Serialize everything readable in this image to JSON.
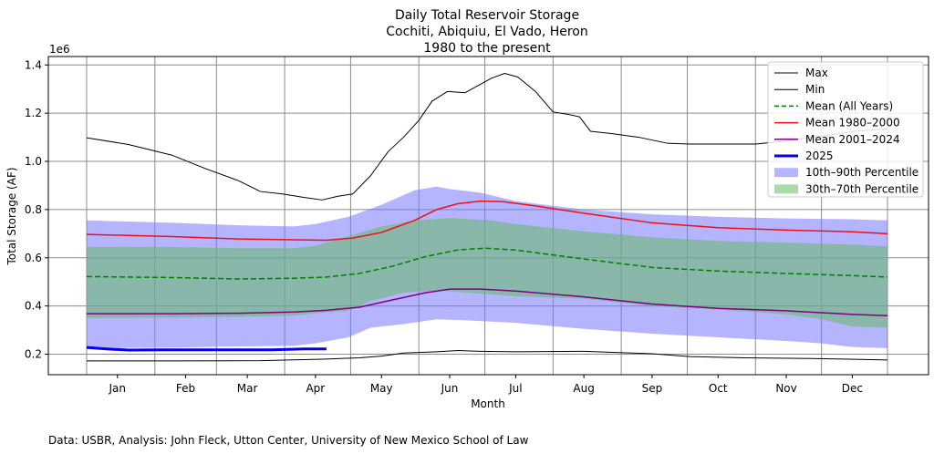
{
  "chart_data": {
    "type": "line",
    "title_lines": [
      "Daily Total Reservoir Storage",
      "Cochiti, Abiquiu, El Vado, Heron",
      "1980 to the present"
    ],
    "xlabel": "Month",
    "ylabel": "Total Storage (AF)",
    "y_multiplier_label": "1e6",
    "xlim": [
      1,
      365
    ],
    "ylim": [
      115000,
      1435000
    ],
    "x_is_day_of_year": true,
    "month_ticks": [
      {
        "label": "Jan",
        "day": 15
      },
      {
        "label": "Feb",
        "day": 46
      },
      {
        "label": "Mar",
        "day": 74
      },
      {
        "label": "Apr",
        "day": 105
      },
      {
        "label": "May",
        "day": 135
      },
      {
        "label": "Jun",
        "day": 166
      },
      {
        "label": "Jul",
        "day": 196
      },
      {
        "label": "Aug",
        "day": 227
      },
      {
        "label": "Sep",
        "day": 258
      },
      {
        "label": "Oct",
        "day": 288
      },
      {
        "label": "Nov",
        "day": 319
      },
      {
        "label": "Dec",
        "day": 349
      }
    ],
    "y_ticks": [
      {
        "label": "0.2",
        "value": 200000
      },
      {
        "label": "0.4",
        "value": 400000
      },
      {
        "label": "0.6",
        "value": 600000
      },
      {
        "label": "0.8",
        "value": 800000
      },
      {
        "label": "1.0",
        "value": 1000000
      },
      {
        "label": "1.2",
        "value": 1200000
      },
      {
        "label": "1.4",
        "value": 1400000
      }
    ],
    "grid": true,
    "legend_position": "upper-right",
    "bands": [
      {
        "name": "10th–90th Percentile",
        "color": "#7777ff",
        "opacity": 0.55,
        "upper": [
          [
            1,
            755000
          ],
          [
            40,
            745000
          ],
          [
            70,
            735000
          ],
          [
            95,
            730000
          ],
          [
            105,
            740000
          ],
          [
            120,
            770000
          ],
          [
            135,
            820000
          ],
          [
            150,
            880000
          ],
          [
            160,
            895000
          ],
          [
            166,
            885000
          ],
          [
            180,
            870000
          ],
          [
            196,
            835000
          ],
          [
            227,
            800000
          ],
          [
            258,
            780000
          ],
          [
            288,
            770000
          ],
          [
            319,
            763000
          ],
          [
            349,
            760000
          ],
          [
            365,
            755000
          ]
        ],
        "lower": [
          [
            1,
            225000
          ],
          [
            40,
            228000
          ],
          [
            70,
            232000
          ],
          [
            95,
            235000
          ],
          [
            105,
            245000
          ],
          [
            120,
            270000
          ],
          [
            130,
            310000
          ],
          [
            145,
            325000
          ],
          [
            160,
            345000
          ],
          [
            175,
            340000
          ],
          [
            196,
            330000
          ],
          [
            227,
            305000
          ],
          [
            258,
            285000
          ],
          [
            288,
            270000
          ],
          [
            319,
            255000
          ],
          [
            335,
            245000
          ],
          [
            349,
            230000
          ],
          [
            365,
            225000
          ]
        ]
      },
      {
        "name": "30th–70th Percentile",
        "color": "#66bb66",
        "opacity": 0.55,
        "upper": [
          [
            1,
            645000
          ],
          [
            40,
            645000
          ],
          [
            70,
            640000
          ],
          [
            95,
            640000
          ],
          [
            105,
            650000
          ],
          [
            120,
            690000
          ],
          [
            135,
            730000
          ],
          [
            150,
            755000
          ],
          [
            166,
            765000
          ],
          [
            185,
            755000
          ],
          [
            196,
            740000
          ],
          [
            227,
            710000
          ],
          [
            258,
            685000
          ],
          [
            288,
            670000
          ],
          [
            319,
            663000
          ],
          [
            349,
            655000
          ],
          [
            365,
            648000
          ]
        ],
        "lower": [
          [
            1,
            350000
          ],
          [
            40,
            352000
          ],
          [
            70,
            355000
          ],
          [
            95,
            360000
          ],
          [
            105,
            370000
          ],
          [
            120,
            380000
          ],
          [
            130,
            420000
          ],
          [
            145,
            455000
          ],
          [
            160,
            465000
          ],
          [
            175,
            455000
          ],
          [
            196,
            440000
          ],
          [
            227,
            430000
          ],
          [
            258,
            400000
          ],
          [
            288,
            385000
          ],
          [
            319,
            365000
          ],
          [
            335,
            345000
          ],
          [
            349,
            315000
          ],
          [
            365,
            310000
          ]
        ]
      }
    ],
    "series": [
      {
        "name": "Max",
        "color": "#000000",
        "style": "solid",
        "width": 1,
        "points": [
          [
            1,
            1098000
          ],
          [
            20,
            1070000
          ],
          [
            40,
            1025000
          ],
          [
            55,
            970000
          ],
          [
            70,
            920000
          ],
          [
            80,
            875000
          ],
          [
            90,
            865000
          ],
          [
            100,
            850000
          ],
          [
            108,
            840000
          ],
          [
            115,
            855000
          ],
          [
            122,
            865000
          ],
          [
            130,
            940000
          ],
          [
            138,
            1040000
          ],
          [
            145,
            1100000
          ],
          [
            152,
            1170000
          ],
          [
            158,
            1250000
          ],
          [
            165,
            1290000
          ],
          [
            173,
            1285000
          ],
          [
            178,
            1310000
          ],
          [
            185,
            1345000
          ],
          [
            191,
            1365000
          ],
          [
            197,
            1350000
          ],
          [
            205,
            1290000
          ],
          [
            213,
            1205000
          ],
          [
            220,
            1195000
          ],
          [
            225,
            1185000
          ],
          [
            230,
            1125000
          ],
          [
            240,
            1115000
          ],
          [
            252,
            1100000
          ],
          [
            265,
            1075000
          ],
          [
            275,
            1072000
          ],
          [
            290,
            1072000
          ],
          [
            305,
            1072000
          ],
          [
            320,
            1085000
          ],
          [
            330,
            1100000
          ],
          [
            340,
            1110000
          ],
          [
            350,
            1125000
          ],
          [
            365,
            1135000
          ]
        ]
      },
      {
        "name": "Min",
        "color": "#000000",
        "style": "solid",
        "width": 1,
        "points": [
          [
            1,
            172000
          ],
          [
            40,
            172000
          ],
          [
            80,
            173000
          ],
          [
            110,
            180000
          ],
          [
            125,
            185000
          ],
          [
            135,
            192000
          ],
          [
            145,
            205000
          ],
          [
            160,
            210000
          ],
          [
            170,
            215000
          ],
          [
            180,
            212000
          ],
          [
            196,
            210000
          ],
          [
            227,
            212000
          ],
          [
            258,
            202000
          ],
          [
            275,
            190000
          ],
          [
            300,
            185000
          ],
          [
            330,
            182000
          ],
          [
            345,
            180000
          ],
          [
            365,
            176000
          ]
        ]
      },
      {
        "name": "Mean (All Years)",
        "color": "#008000",
        "style": "dashed",
        "width": 1.5,
        "points": [
          [
            1,
            522000
          ],
          [
            40,
            518000
          ],
          [
            70,
            512000
          ],
          [
            95,
            515000
          ],
          [
            110,
            520000
          ],
          [
            125,
            535000
          ],
          [
            140,
            565000
          ],
          [
            155,
            605000
          ],
          [
            170,
            633000
          ],
          [
            182,
            640000
          ],
          [
            196,
            632000
          ],
          [
            227,
            595000
          ],
          [
            258,
            560000
          ],
          [
            288,
            545000
          ],
          [
            319,
            535000
          ],
          [
            349,
            526000
          ],
          [
            365,
            520000
          ]
        ]
      },
      {
        "name": "Mean 1980–2000",
        "color": "#ee1111",
        "style": "solid",
        "width": 1.5,
        "points": [
          [
            1,
            697000
          ],
          [
            40,
            688000
          ],
          [
            70,
            678000
          ],
          [
            95,
            675000
          ],
          [
            110,
            673000
          ],
          [
            122,
            682000
          ],
          [
            135,
            705000
          ],
          [
            150,
            755000
          ],
          [
            160,
            800000
          ],
          [
            170,
            825000
          ],
          [
            180,
            835000
          ],
          [
            190,
            833000
          ],
          [
            205,
            815000
          ],
          [
            227,
            785000
          ],
          [
            258,
            745000
          ],
          [
            288,
            725000
          ],
          [
            319,
            715000
          ],
          [
            349,
            708000
          ],
          [
            365,
            700000
          ]
        ]
      },
      {
        "name": "Mean 2001–2024",
        "color": "#800080",
        "style": "solid",
        "width": 1.5,
        "points": [
          [
            1,
            368000
          ],
          [
            40,
            368000
          ],
          [
            70,
            370000
          ],
          [
            95,
            375000
          ],
          [
            110,
            382000
          ],
          [
            125,
            395000
          ],
          [
            140,
            425000
          ],
          [
            155,
            455000
          ],
          [
            166,
            470000
          ],
          [
            180,
            470000
          ],
          [
            196,
            462000
          ],
          [
            227,
            438000
          ],
          [
            258,
            408000
          ],
          [
            288,
            390000
          ],
          [
            319,
            380000
          ],
          [
            349,
            365000
          ],
          [
            365,
            360000
          ]
        ]
      },
      {
        "name": "2025",
        "color": "#0000ee",
        "style": "solid",
        "width": 3,
        "points": [
          [
            1,
            228000
          ],
          [
            10,
            222000
          ],
          [
            20,
            217000
          ],
          [
            35,
            218000
          ],
          [
            50,
            218000
          ],
          [
            70,
            218000
          ],
          [
            85,
            218000
          ],
          [
            100,
            222000
          ],
          [
            110,
            222000
          ]
        ]
      }
    ]
  },
  "footer": "Data: USBR, Analysis: John Fleck, Utton Center, University of New Mexico School of Law"
}
